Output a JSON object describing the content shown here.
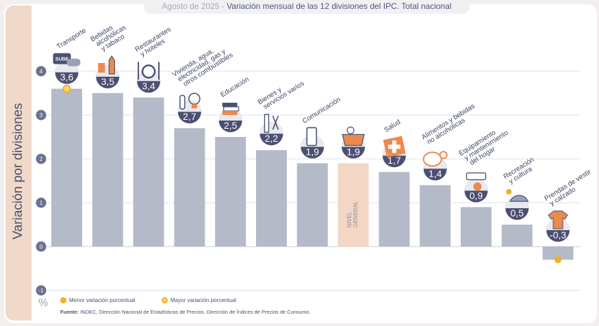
{
  "title_prefix": "Agosto de 2025",
  "title_separator": " - ",
  "title": "Variación mensual de las 12 divisiones del IPC. Total nacional",
  "y_axis_label": "Variación por divisiones",
  "unit_label": "%",
  "legend": {
    "min_label": "Menor variación porcentual",
    "max_label": "Mayor variación porcentual"
  },
  "source": {
    "label": "Fuente:",
    "text": "INDEC, Dirección Nacional de Estadísticas de Precios. Dirección de Índices de Precios de Consumo."
  },
  "colors": {
    "bar": "#b4bac8",
    "highlight_bar": "#f3d6c4",
    "badge": "#4b5072",
    "marker": "#f5ad1f",
    "grid": "#d4d7e0",
    "panel": "#f1d9ca"
  },
  "chart_data": {
    "type": "bar",
    "categories": [
      "Transporte",
      "Bebidas alcohólicas y tabaco",
      "Restaurantes y hoteles",
      "Vivienda, agua, electricidad, gas y otros combustibles",
      "Educación",
      "Bienes y servicios varios",
      "Comunicación",
      "NIVEL GENERAL",
      "Salud",
      "Alimentos y bebidas no alcohólicas",
      "Equipamiento y mantenimiento del hogar",
      "Recreación y cultura",
      "Prendas de vestir y calzado"
    ],
    "category_label_lines": [
      [
        "Transporte"
      ],
      [
        "Bebidas",
        "alcohólicas",
        "y tabaco"
      ],
      [
        "Restaurantes",
        "y hoteles"
      ],
      [
        "Vivienda, agua,",
        "electricidad, gas y",
        "otros combustibles"
      ],
      [
        "Educación"
      ],
      [
        "Bienes y",
        "servicios varios"
      ],
      [
        "Comunicación"
      ],
      [],
      [
        "Salud"
      ],
      [
        "Alimentos y bebidas",
        "no alcohólicas"
      ],
      [
        "Equipamiento",
        "y mantenimiento",
        "del hogar"
      ],
      [
        "Recreación",
        "y cultura"
      ],
      [
        "Prendas de vestir",
        "y calzado"
      ]
    ],
    "in_bar_label_lines": [
      "NIVEL",
      "GENERAL"
    ],
    "highlight_index": 7,
    "values": [
      3.6,
      3.5,
      3.4,
      2.7,
      2.5,
      2.2,
      1.9,
      1.9,
      1.7,
      1.4,
      0.9,
      0.5,
      -0.3
    ],
    "value_labels": [
      "3,6",
      "3,5",
      "3,4",
      "2,7",
      "2,5",
      "2,2",
      "1,9",
      "1,9",
      "1,7",
      "1,4",
      "0,9",
      "0,5",
      "-0,3"
    ],
    "icons": [
      "bus-card-icon",
      "drinks-icon",
      "dining-icon",
      "utilities-icon",
      "books-icon",
      "grooming-icon",
      "phone-icon",
      "basket-icon",
      "medical-kit-icon",
      "food-icon",
      "appliance-icon",
      "leisure-icon",
      "clothing-icon"
    ],
    "icon_text": [
      "SUBE"
    ],
    "ylim": [
      -1,
      4
    ],
    "yticks": [
      -1,
      0,
      1,
      2,
      3,
      4
    ],
    "ytick_labels": [
      "-1",
      "0",
      "1",
      "2",
      "3",
      "4"
    ],
    "max_index": 0,
    "min_index": 12,
    "grid": true,
    "ylabel": "Variación por divisiones",
    "xlabel": ""
  }
}
